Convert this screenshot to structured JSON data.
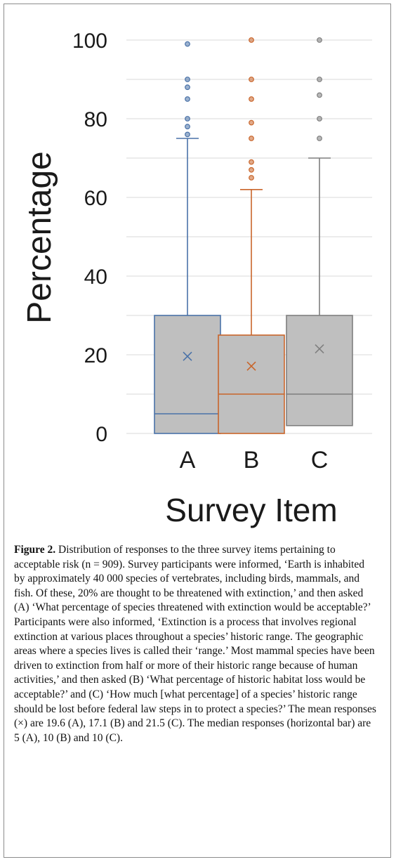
{
  "chart_data": {
    "type": "box",
    "xlabel": "Survey Item",
    "ylabel": "Percentage",
    "ylim": [
      0,
      100
    ],
    "yticks": [
      0,
      20,
      40,
      60,
      80,
      100
    ],
    "grid": true,
    "categories": [
      "A",
      "B",
      "C"
    ],
    "series": [
      {
        "category": "A",
        "color": "#4a72a8",
        "min": 0,
        "q1": 0,
        "median": 5,
        "q3": 30,
        "whisker_high": 75,
        "mean": 19.6,
        "outliers": [
          76,
          78,
          80,
          85,
          88,
          90,
          99
        ]
      },
      {
        "category": "B",
        "color": "#c9652a",
        "min": 0,
        "q1": 0,
        "median": 10,
        "q3": 25,
        "whisker_high": 62,
        "mean": 17.1,
        "outliers": [
          65,
          67,
          69,
          75,
          79,
          85,
          90,
          100
        ]
      },
      {
        "category": "C",
        "color": "#7f7f7f",
        "min": 2,
        "q1": 2,
        "median": 10,
        "q3": 30,
        "whisker_high": 70,
        "mean": 21.5,
        "outliers": [
          75,
          80,
          86,
          90,
          100
        ]
      }
    ]
  },
  "caption": {
    "label": "Figure 2.",
    "text": " Distribution of responses to the three survey items pertaining to acceptable risk (n = 909). Survey participants were informed, ‘Earth is inhabited by approximately 40 000 species of vertebrates, including birds, mammals, and fish. Of these, 20% are thought to be threatened with extinction,’ and then asked (A) ‘What percentage of species threatened with extinction would be acceptable?’ Participants were also informed, ‘Extinction is a process that involves regional extinction at various places throughout a species’ historic range. The geographic areas where a species lives is called their ‘range.’ Most mammal species have been driven to extinction from half or more of their historic range because of human activities,’ and then asked (B) ‘What percentage of historic habitat loss would be acceptable?’ and (C) ‘How much [what percentage] of a species’ historic range should be lost before federal law steps in to protect a species?’ The mean responses (×) are 19.6 (A), 17.1 (B) and 21.5 (C). The median responses (horizontal bar) are 5 (A), 10 (B) and 10 (C)."
  }
}
